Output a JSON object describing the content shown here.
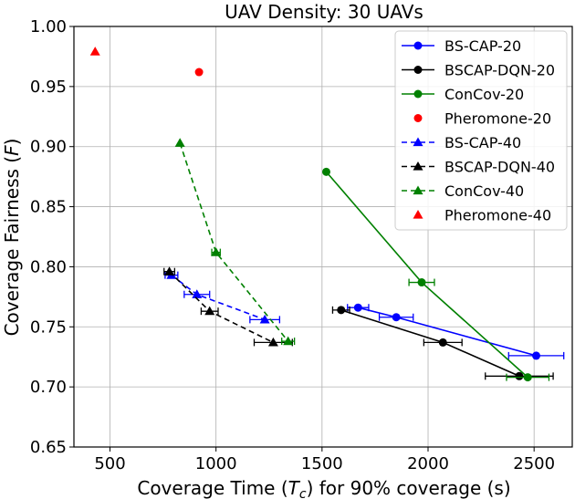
{
  "chart_data": {
    "type": "scatter",
    "title": "UAV Density: 30 UAVs",
    "xlabel_prefix": "Coverage Time (",
    "xlabel_symbol": "T",
    "xlabel_subscript": "c",
    "xlabel_suffix": ") for 90% coverage (s)",
    "ylabel_prefix": "Coverage Fairness (",
    "ylabel_symbol": "F",
    "ylabel_suffix": ")",
    "xlim": [
      330,
      2680
    ],
    "ylim": [
      0.65,
      1.0
    ],
    "xticks": [
      500,
      1000,
      1500,
      2000,
      2500
    ],
    "xtick_labels": [
      "500",
      "1000",
      "1500",
      "2000",
      "2500"
    ],
    "yticks": [
      0.65,
      0.7,
      0.75,
      0.8,
      0.85,
      0.9,
      0.95,
      1.0
    ],
    "ytick_labels": [
      "0.65",
      "0.70",
      "0.75",
      "0.80",
      "0.85",
      "0.90",
      "0.95",
      "1.00"
    ],
    "grid": true,
    "legend_position": "top-right",
    "series": [
      {
        "name": "BS-CAP-20",
        "color": "#0000ff",
        "marker": "circle",
        "line": "solid",
        "points": [
          [
            1670,
            0.766,
            50
          ],
          [
            1850,
            0.758,
            80
          ],
          [
            2510,
            0.726,
            130
          ]
        ]
      },
      {
        "name": "BSCAP-DQN-20",
        "color": "#000000",
        "marker": "circle",
        "line": "solid",
        "points": [
          [
            1590,
            0.764,
            40
          ],
          [
            2070,
            0.737,
            90
          ],
          [
            2430,
            0.709,
            160
          ]
        ]
      },
      {
        "name": "ConCov-20",
        "color": "#008000",
        "marker": "circle",
        "line": "solid",
        "points": [
          [
            1520,
            0.879,
            0
          ],
          [
            1970,
            0.787,
            60
          ],
          [
            2470,
            0.708,
            100
          ]
        ]
      },
      {
        "name": "Pheromone-20",
        "color": "#ff0000",
        "marker": "circle",
        "line": "none",
        "points": [
          [
            920,
            0.962,
            0
          ]
        ]
      },
      {
        "name": "BS-CAP-40",
        "color": "#0000ff",
        "marker": "triangle",
        "line": "dashed",
        "points": [
          [
            790,
            0.793,
            30
          ],
          [
            910,
            0.777,
            60
          ],
          [
            1230,
            0.756,
            70
          ]
        ]
      },
      {
        "name": "BSCAP-DQN-40",
        "color": "#000000",
        "marker": "triangle",
        "line": "dashed",
        "points": [
          [
            780,
            0.796,
            25
          ],
          [
            970,
            0.763,
            40
          ],
          [
            1270,
            0.737,
            90
          ]
        ]
      },
      {
        "name": "ConCov-40",
        "color": "#008000",
        "marker": "triangle",
        "line": "dashed",
        "points": [
          [
            830,
            0.903,
            0
          ],
          [
            1000,
            0.812,
            20
          ],
          [
            1340,
            0.738,
            30
          ]
        ]
      },
      {
        "name": "Pheromone-40",
        "color": "#ff0000",
        "marker": "triangle",
        "line": "none",
        "points": [
          [
            430,
            0.979,
            0
          ]
        ]
      }
    ]
  }
}
